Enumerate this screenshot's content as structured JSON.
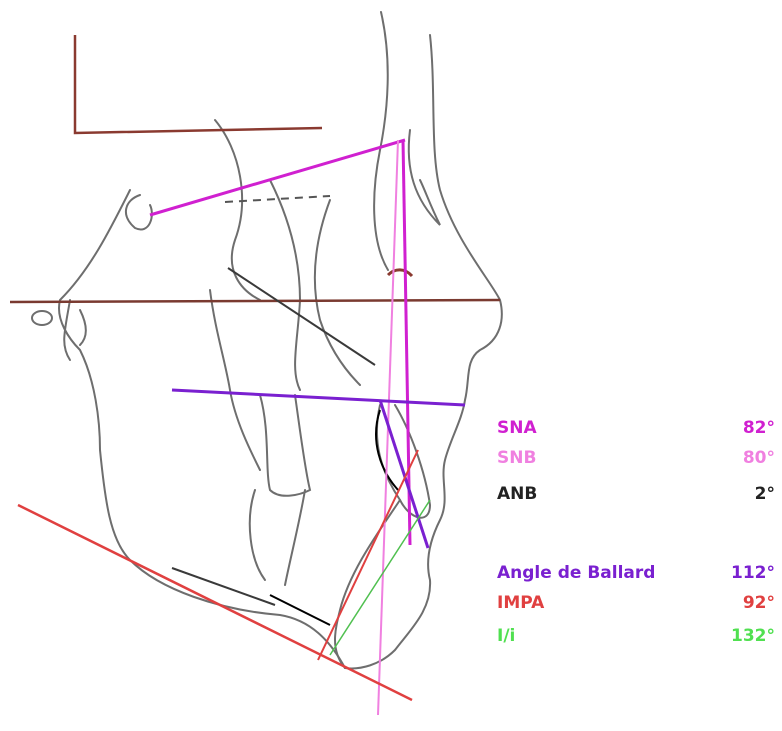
{
  "measurements": [
    {
      "label": "SNA",
      "value": "82°"
    },
    {
      "label": "SNB",
      "value": "80°"
    },
    {
      "label": "ANB",
      "value": "2°"
    },
    {
      "label": "Angle de Ballard",
      "value": "112°"
    },
    {
      "label": "IMPA",
      "value": "92°"
    },
    {
      "label": "I/i",
      "value": "132°"
    }
  ]
}
